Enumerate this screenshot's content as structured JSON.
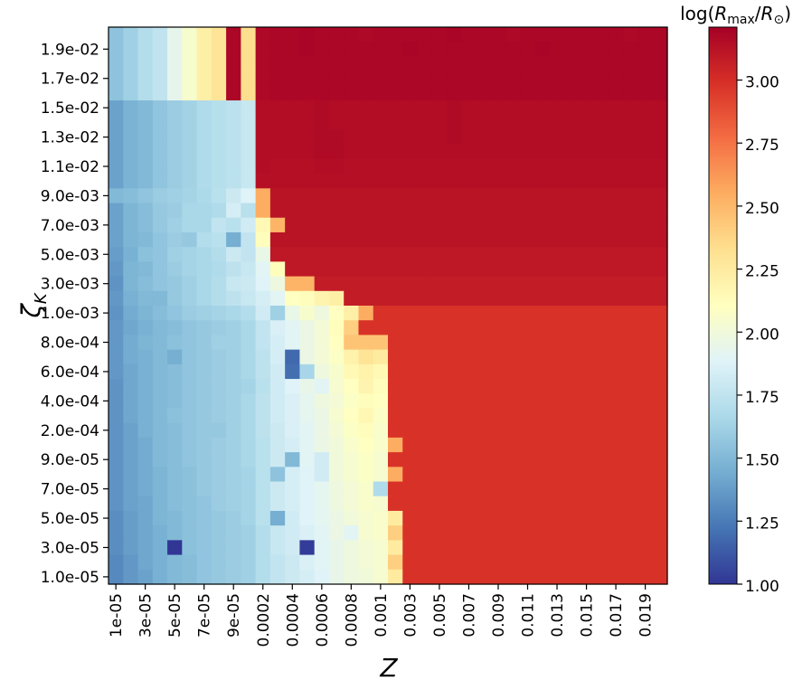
{
  "chart_data": {
    "type": "heatmap",
    "title": "",
    "xlabel": "Z",
    "ylabel": "ζ_K",
    "ylabel_main": "ζ",
    "ylabel_sub": "K",
    "colorbar_label": "log(R_max/R_⊙)",
    "colorbar_label_parts": {
      "prefix": "log(",
      "R1": "R",
      "sub1": "max",
      "slash": "/",
      "R2": "R",
      "sub2": "⊙",
      "suffix": ")"
    },
    "colormap": "RdYlBu_r",
    "vmin": 1.0,
    "vmax": 3.21,
    "colorbar_ticks": [
      "1.00",
      "1.25",
      "1.50",
      "1.75",
      "2.00",
      "2.25",
      "2.50",
      "2.75",
      "3.00"
    ],
    "colorbar_tick_values": [
      1.0,
      1.25,
      1.5,
      1.75,
      2.0,
      2.25,
      2.5,
      2.75,
      3.0
    ],
    "x_values": [
      "1e-05",
      "2e-05",
      "3e-05",
      "4e-05",
      "5e-05",
      "6e-05",
      "7e-05",
      "8e-05",
      "9e-05",
      "1e-04",
      "0.0002",
      "0.0003",
      "0.0004",
      "0.0005",
      "0.0006",
      "0.0007",
      "0.0008",
      "0.0009",
      "0.001",
      "0.002",
      "0.003",
      "0.004",
      "0.005",
      "0.006",
      "0.007",
      "0.008",
      "0.009",
      "0.01",
      "0.011",
      "0.012",
      "0.013",
      "0.014",
      "0.015",
      "0.016",
      "0.017",
      "0.018",
      "0.019",
      "0.02"
    ],
    "x_tick_labels": [
      "1e-05",
      "3e-05",
      "5e-05",
      "7e-05",
      "9e-05",
      "0.0002",
      "0.0004",
      "0.0006",
      "0.0008",
      "0.001",
      "0.003",
      "0.005",
      "0.007",
      "0.009",
      "0.011",
      "0.013",
      "0.015",
      "0.017",
      "0.019"
    ],
    "y_values_top_to_bottom": [
      "2.0e-02",
      "1.9e-02",
      "1.8e-02",
      "1.7e-02",
      "1.6e-02",
      "1.5e-02",
      "1.4e-02",
      "1.3e-02",
      "1.2e-02",
      "1.1e-02",
      "1.0e-02",
      "9.0e-03",
      "8.0e-03",
      "7.0e-03",
      "6.0e-03",
      "5.0e-03",
      "4.0e-03",
      "3.0e-03",
      "2.0e-03",
      "1.0e-03",
      "9.0e-04",
      "8.0e-04",
      "7.0e-04",
      "6.0e-04",
      "5.0e-04",
      "4.0e-04",
      "3.0e-04",
      "2.0e-04",
      "1.0e-04",
      "9.0e-05",
      "8.0e-05",
      "7.0e-05",
      "6.0e-05",
      "5.0e-05",
      "4.0e-05",
      "3.0e-05",
      "2.0e-05",
      "1.0e-05"
    ],
    "y_tick_labels": [
      "1.9e-02",
      "1.7e-02",
      "1.5e-02",
      "1.3e-02",
      "1.1e-02",
      "9.0e-03",
      "7.0e-03",
      "5.0e-03",
      "3.0e-03",
      "1.0e-03",
      "8.0e-04",
      "6.0e-04",
      "4.0e-04",
      "2.0e-04",
      "9.0e-05",
      "7.0e-05",
      "5.0e-05",
      "3.0e-05",
      "1.0e-05"
    ],
    "z_rows_top_to_bottom": [
      "1.55 1.62 1.70 1.75 1.93 2.05 2.22 2.30 3.18 2.33 3.17 3.18 3.18 3.19 3.18 3.18 3.18 3.17 3.18 3.18 3.18 3.18 3.18 3.19 3.18 3.18 3.18 3.17 3.18 3.18 3.18 3.18 3.18 3.18 3.18 3.17 3.18 3.18",
      "1.55 1.62 1.70 1.75 1.93 2.05 2.22 2.30 3.18 2.33 3.17 3.18 3.18 3.19 3.18 3.18 3.18 3.18 3.18 3.18 3.19 3.18 3.18 3.18 3.18 3.18 3.18 3.18 3.18 3.19 3.18 3.18 3.18 3.18 3.18 3.18 3.18 3.18",
      "1.55 1.62 1.70 1.75 1.93 2.05 2.22 2.30 3.18 2.33 3.17 3.18 3.18 3.18 3.18 3.18 3.18 3.18 3.18 3.18 3.18 3.18 3.18 3.18 3.18 3.18 3.18 3.18 3.18 3.18 3.18 3.18 3.18 3.18 3.18 3.18 3.18 3.18",
      "1.55 1.62 1.70 1.75 1.93 2.05 2.22 2.30 3.18 2.33 3.17 3.18 3.18 3.18 3.18 3.18 3.18 3.18 3.18 3.18 3.18 3.18 3.18 3.18 3.18 3.18 3.18 3.18 3.18 3.18 3.18 3.18 3.18 3.18 3.18 3.18 3.18 3.18",
      "1.55 1.62 1.70 1.75 1.93 2.05 2.22 2.30 3.18 2.33 3.17 3.18 3.18 3.18 3.18 3.18 3.18 3.18 3.18 3.18 3.18 3.18 3.18 3.18 3.18 3.18 3.18 3.18 3.18 3.18 3.18 3.18 3.18 3.18 3.18 3.18 3.18 3.18",
      "1.40 1.47 1.50 1.56 1.60 1.63 1.68 1.71 1.73 1.78 3.15 3.15 3.15 3.15 3.16 3.15 3.15 3.15 3.15 3.15 3.15 3.15 3.15 3.16 3.15 3.15 3.15 3.15 3.15 3.15 3.15 3.15 3.15 3.15 3.15 3.15 3.15 3.15",
      "1.40 1.47 1.50 1.56 1.60 1.63 1.68 1.71 1.73 1.78 3.15 3.15 3.15 3.15 3.16 3.15 3.15 3.15 3.15 3.15 3.15 3.15 3.15 3.16 3.15 3.15 3.15 3.15 3.15 3.15 3.15 3.15 3.15 3.15 3.15 3.15 3.15 3.15",
      "1.40 1.47 1.50 1.56 1.60 1.63 1.68 1.71 1.73 1.78 3.15 3.15 3.15 3.15 3.16 3.16 3.15 3.15 3.15 3.15 3.15 3.15 3.15 3.16 3.15 3.15 3.15 3.15 3.15 3.15 3.15 3.15 3.15 3.15 3.15 3.15 3.15 3.15",
      "1.40 1.47 1.50 1.56 1.60 1.63 1.68 1.71 1.73 1.78 3.15 3.15 3.15 3.15 3.16 3.16 3.15 3.15 3.15 3.15 3.15 3.15 3.15 3.15 3.15 3.15 3.15 3.15 3.15 3.15 3.15 3.15 3.15 3.15 3.15 3.15 3.15 3.15",
      "1.40 1.47 1.50 1.56 1.60 1.63 1.68 1.71 1.73 1.78 3.15 3.14 3.14 3.14 3.15 3.15 3.14 3.14 3.14 3.14 3.14 3.14 3.14 3.14 3.14 3.14 3.14 3.14 3.14 3.14 3.14 3.14 3.14 3.14 3.14 3.14 3.14 3.14",
      "1.40 1.47 1.50 1.56 1.60 1.63 1.68 1.71 1.73 1.78 3.14 3.14 3.14 3.14 3.14 3.14 3.14 3.14 3.14 3.14 3.14 3.14 3.14 3.14 3.14 3.14 3.14 3.14 3.14 3.14 3.14 3.14 3.14 3.14 3.14 3.14 3.14 3.14",
      "1.50 1.52 1.56 1.60 1.62 1.64 1.67 1.72 1.80 1.88 2.55 3.12 3.12 3.12 3.12 3.12 3.12 3.12 3.12 3.12 3.12 3.12 3.12 3.12 3.12 3.12 3.12 3.12 3.12 3.12 3.12 3.12 3.12 3.12 3.12 3.12 3.12 3.12",
      "1.40 1.48 1.52 1.58 1.60 1.66 1.66 1.68 1.84 1.72 2.55 3.12 3.12 3.12 3.12 3.12 3.12 3.12 3.12 3.12 3.12 3.12 3.12 3.12 3.12 3.12 3.12 3.12 3.12 3.12 3.12 3.12 3.12 3.12 3.12 3.12 3.12 3.12",
      "1.40 1.48 1.52 1.58 1.62 1.66 1.66 1.76 1.72 1.82 2.15 2.52 3.12 3.12 3.12 3.12 3.12 3.12 3.12 3.12 3.12 3.12 3.12 3.12 3.12 3.12 3.12 3.12 3.12 3.12 3.12 3.12 3.12 3.12 3.12 3.12 3.12 3.12",
      "1.40 1.48 1.50 1.56 1.60 1.58 1.70 1.72 1.45 1.76 2.12 3.12 3.12 3.12 3.12 3.12 3.12 3.12 3.12 3.12 3.12 3.12 3.12 3.12 3.12 3.12 3.12 3.12 3.12 3.12 3.12 3.12 3.12 3.12 3.12 3.12 3.12 3.12",
      "1.38 1.46 1.54 1.56 1.62 1.64 1.66 1.70 1.80 1.76 1.95 3.10 3.10 3.10 3.10 3.10 3.10 3.10 3.10 3.10 3.10 3.10 3.10 3.10 3.10 3.10 3.10 3.10 3.10 3.10 3.10 3.10 3.10 3.10 3.10 3.10 3.10 3.10",
      "1.36 1.48 1.50 1.56 1.60 1.64 1.66 1.68 1.74 1.78 1.90 2.12 3.10 3.10 3.10 3.10 3.10 3.10 3.10 3.10 3.10 3.10 3.10 3.10 3.10 3.10 3.10 3.10 3.10 3.10 3.10 3.10 3.10 3.10 3.10 3.10 3.10 3.10",
      "1.34 1.48 1.52 1.56 1.58 1.62 1.66 1.70 1.78 1.80 1.88 1.98 2.52 2.52 3.08 3.08 3.08 3.08 3.08 3.08 3.08 3.08 3.08 3.08 3.08 3.08 3.08 3.08 3.08 3.08 3.08 3.08 3.08 3.08 3.08 3.08 3.08 3.08",
      "1.36 1.46 1.50 1.50 1.58 1.62 1.66 1.70 1.74 1.78 1.84 1.90 2.10 2.12 2.18 2.22 3.08 3.08 3.08 3.08 3.08 3.08 3.08 3.08 3.08 3.08 3.08 3.08 3.08 3.08 3.08 3.08 3.08 3.08 3.08 3.08 3.08 3.08",
      "1.34 1.44 1.48 1.52 1.56 1.60 1.62 1.64 1.66 1.70 1.82 1.62 1.95 2.05 1.98 2.10 2.22 2.55 2.98 2.98 2.98 2.98 2.98 2.98 2.98 2.98 2.98 2.98 2.98 2.98 2.98 2.98 2.98 2.98 2.98 2.98 2.98 2.98",
      "1.36 1.42 1.46 1.50 1.52 1.56 1.58 1.60 1.62 1.66 1.76 1.86 1.90 1.96 2.02 2.12 2.40 2.98 2.98 2.98 2.98 2.98 2.98 2.98 2.98 2.98 2.98 2.98 2.98 2.98 2.98 2.98 2.98 2.98 2.98 2.98 2.98 2.98",
      "1.36 1.44 1.48 1.50 1.54 1.56 1.58 1.62 1.62 1.66 1.76 1.84 1.90 1.96 2.02 2.10 2.45 2.45 2.45 2.98 2.98 2.98 2.98 2.98 2.98 2.98 2.98 2.98 2.98 2.98 2.98 2.98 2.98 2.98 2.98 2.98 2.98 2.98",
      "1.36 1.44 1.46 1.50 1.45 1.56 1.58 1.60 1.62 1.66 1.74 1.84 1.18 1.96 2.02 2.08 2.20 2.30 2.25 2.98 2.98 2.98 2.98 2.98 2.98 2.98 2.98 2.98 2.98 2.98 2.98 2.98 2.98 2.98 2.98 2.98 2.98 2.98",
      "1.36 1.42 1.46 1.50 1.52 1.56 1.58 1.60 1.62 1.66 1.74 1.82 1.20 1.65 1.98 2.05 2.15 2.20 2.15 2.98 2.98 2.98 2.98 2.98 2.98 2.98 2.98 2.98 2.98 2.98 2.98 2.98 2.98 2.98 2.98 2.98 2.98 2.98",
      "1.34 1.42 1.46 1.50 1.52 1.56 1.58 1.60 1.62 1.64 1.72 1.82 1.88 1.94 1.90 2.04 2.10 2.18 2.12 2.98 2.98 2.98 2.98 2.98 2.98 2.98 2.98 2.98 2.98 2.98 2.98 2.98 2.98 2.98 2.98 2.98 2.98 2.98",
      "1.34 1.42 1.46 1.50 1.52 1.56 1.58 1.60 1.62 1.66 1.74 1.82 1.86 1.92 1.98 2.02 2.08 2.12 2.10 2.98 2.98 2.98 2.98 2.98 2.98 2.98 2.98 2.98 2.98 2.98 2.98 2.98 2.98 2.98 2.98 2.98 2.98 2.98",
      "1.34 1.42 1.46 1.50 1.54 1.56 1.58 1.60 1.62 1.66 1.74 1.82 1.86 1.92 1.96 2.04 2.10 2.16 2.08 2.98 2.98 2.98 2.98 2.98 2.98 2.98 2.98 2.98 2.98 2.98 2.98 2.98 2.98 2.98 2.98 2.98 2.98 2.98",
      "1.34 1.40 1.46 1.50 1.52 1.56 1.58 1.58 1.62 1.66 1.74 1.80 1.86 1.90 1.96 2.02 2.08 2.12 2.06 2.98 2.98 2.98 2.98 2.98 2.98 2.98 2.98 2.98 2.98 2.98 2.98 2.98 2.98 2.98 2.98 2.98 2.98 2.98",
      "1.34 1.40 1.44 1.50 1.52 1.56 1.58 1.60 1.62 1.66 1.72 1.80 1.84 1.90 1.96 2.00 2.06 2.10 2.06 2.55 2.98 2.98 2.98 2.98 2.98 2.98 2.98 2.98 2.98 2.98 2.98 2.98 2.98 2.98 2.98 2.98 2.98 2.98",
      "1.34 1.40 1.44 1.50 1.52 1.56 1.58 1.60 1.62 1.66 1.72 1.80 1.50 1.90 1.82 2.00 2.04 2.08 2.04 2.98 2.98 2.98 2.98 2.98 2.98 2.98 2.98 2.98 2.98 2.98 2.98 2.98 2.98 2.98 2.98 2.98 2.98 2.98",
      "1.34 1.40 1.44 1.48 1.52 1.54 1.58 1.60 1.62 1.64 1.72 1.55 1.84 1.88 1.82 2.00 2.04 2.08 2.04 2.55 2.98 2.98 2.98 2.98 2.98 2.98 2.98 2.98 2.98 2.98 2.98 2.98 2.98 2.98 2.98 2.98 2.98 2.98",
      "1.34 1.40 1.44 1.48 1.52 1.54 1.58 1.60 1.62 1.64 1.72 1.80 1.84 1.88 1.92 1.98 2.02 2.06 1.68 2.98 2.98 2.98 2.98 2.98 2.98 2.98 2.98 2.98 2.98 2.98 2.98 2.98 2.98 2.98 2.98 2.98 2.98 2.98",
      "1.34 1.40 1.42 1.48 1.52 1.54 1.56 1.60 1.62 1.64 1.72 1.80 1.84 1.88 1.92 1.98 2.02 2.06 2.04 2.98 2.98 2.98 2.98 2.98 2.98 2.98 2.98 2.98 2.98 2.98 2.98 2.98 2.98 2.98 2.98 2.98 2.98 2.98",
      "1.32 1.38 1.42 1.48 1.50 1.54 1.56 1.58 1.60 1.64 1.72 1.45 1.82 1.88 1.92 1.96 2.00 2.04 2.06 2.25 2.98 2.98 2.98 2.98 2.98 2.98 2.98 2.98 2.98 2.98 2.98 2.98 2.98 2.98 2.98 2.98 2.98 2.98",
      "1.32 1.38 1.42 1.46 1.50 1.54 1.56 1.58 1.60 1.62 1.70 1.78 1.82 1.86 1.90 1.96 1.90 2.04 2.06 2.40 2.98 2.98 2.98 2.98 2.98 2.98 2.98 2.98 2.98 2.98 2.98 2.98 2.98 2.98 2.98 2.98 2.98 2.98",
      "1.32 1.38 1.42 1.46 1.00 1.54 1.56 1.58 1.60 1.62 1.70 1.78 1.82 1.02 1.90 1.94 1.98 2.02 2.04 2.25 2.98 2.98 2.98 2.98 2.98 2.98 2.98 2.98 2.98 2.98 2.98 2.98 2.98 2.98 2.98 2.98 2.98 2.98",
      "1.30 1.36 1.42 1.46 1.50 1.52 1.56 1.58 1.60 1.62 1.70 1.76 1.80 1.86 1.90 1.94 1.98 2.02 2.04 2.40 2.98 2.98 2.98 2.98 2.98 2.98 2.98 2.98 2.98 2.98 2.98 2.98 2.98 2.98 2.98 2.98 2.98 2.98",
      "1.30 1.36 1.40 1.46 1.50 1.52 1.56 1.58 1.60 1.62 1.70 1.76 1.80 1.84 1.88 1.94 1.98 2.00 2.04 2.25 2.98 2.98 2.98 2.98 2.98 2.98 2.98 2.98 2.98 2.98 2.98 2.98 2.98 2.98 2.98 2.98 2.98 2.98"
    ],
    "grid": false,
    "legend": "colorbar-right"
  }
}
